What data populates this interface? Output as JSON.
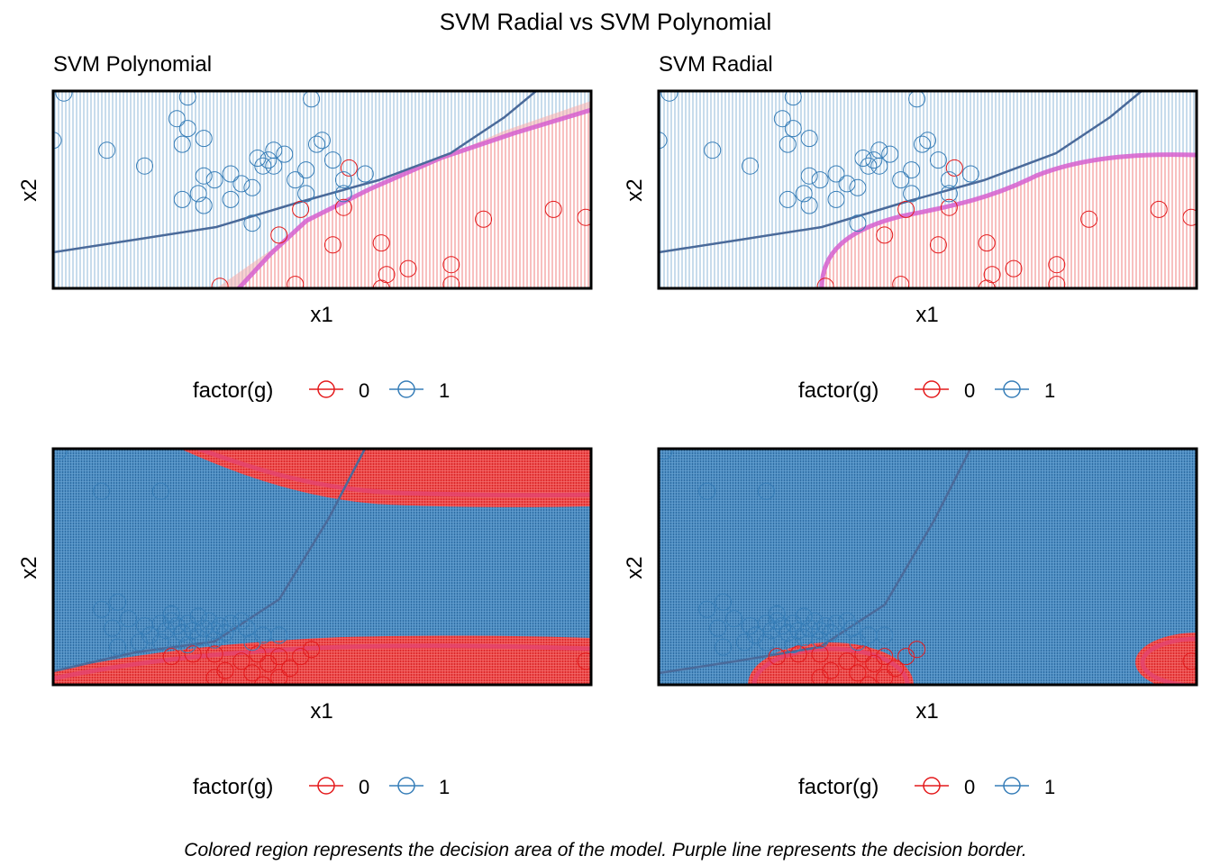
{
  "figure": {
    "title": "SVM Radial vs SVM Polynomial",
    "caption": "Colored region represents the decision area of the model. Purple line represents the decision border."
  },
  "colors": {
    "class_0": "#e41a1c",
    "class_1": "#377eb8",
    "border": "#d65fcf",
    "curve": "#4a6a9a"
  },
  "legend": {
    "title": "factor(g)",
    "entries": [
      "0",
      "1"
    ]
  },
  "chart_data": [
    {
      "type": "scatter",
      "title": "SVM Polynomial",
      "xlabel": "x1",
      "ylabel": "x2",
      "legend_position": "bottom",
      "series": [
        {
          "name": "0",
          "points": [
            [
              0.52,
              0.22
            ],
            [
              0.66,
              0.1
            ],
            [
              0.61,
              0.23
            ],
            [
              0.62,
              0.07
            ],
            [
              0.54,
              0.41
            ],
            [
              0.8,
              0.35
            ],
            [
              0.46,
              0.4
            ],
            [
              0.42,
              0.27
            ],
            [
              0.99,
              0.36
            ],
            [
              0.93,
              0.4
            ],
            [
              0.74,
              0.12
            ],
            [
              0.45,
              0.02
            ],
            [
              0.74,
              0.02
            ],
            [
              0.55,
              0.61
            ],
            [
              0.61,
              0.0
            ],
            [
              0.31,
              0.01
            ]
          ]
        },
        {
          "name": "1",
          "points": [
            [
              0.25,
              0.97
            ],
            [
              0.02,
              0.99
            ],
            [
              0.0,
              0.75
            ],
            [
              0.1,
              0.7
            ],
            [
              0.17,
              0.62
            ],
            [
              0.23,
              0.86
            ],
            [
              0.25,
              0.81
            ],
            [
              0.28,
              0.76
            ],
            [
              0.24,
              0.73
            ],
            [
              0.28,
              0.57
            ],
            [
              0.27,
              0.48
            ],
            [
              0.3,
              0.55
            ],
            [
              0.33,
              0.45
            ],
            [
              0.35,
              0.53
            ],
            [
              0.38,
              0.66
            ],
            [
              0.39,
              0.62
            ],
            [
              0.37,
              0.51
            ],
            [
              0.48,
              0.96
            ],
            [
              0.49,
              0.73
            ],
            [
              0.5,
              0.75
            ],
            [
              0.52,
              0.65
            ],
            [
              0.54,
              0.55
            ],
            [
              0.43,
              0.68
            ],
            [
              0.41,
              0.62
            ],
            [
              0.45,
              0.55
            ],
            [
              0.47,
              0.6
            ],
            [
              0.58,
              0.58
            ],
            [
              0.54,
              0.48
            ],
            [
              0.47,
              0.48
            ],
            [
              0.41,
              0.7
            ],
            [
              0.4,
              0.65
            ],
            [
              0.37,
              0.33
            ],
            [
              0.33,
              0.58
            ],
            [
              0.28,
              0.42
            ],
            [
              0.24,
              0.45
            ]
          ]
        }
      ],
      "decision_border": [
        [
          0.35,
          0.0
        ],
        [
          0.45,
          0.18
        ],
        [
          0.6,
          0.4
        ],
        [
          0.75,
          0.62
        ],
        [
          0.9,
          0.78
        ],
        [
          1.0,
          0.9
        ]
      ],
      "second_curve": [
        [
          0.0,
          0.2
        ],
        [
          0.3,
          0.28
        ],
        [
          0.5,
          0.44
        ],
        [
          0.7,
          0.7
        ],
        [
          0.9,
          0.96
        ],
        [
          0.94,
          1.0
        ]
      ]
    },
    {
      "type": "scatter",
      "title": "SVM Radial",
      "xlabel": "x1",
      "ylabel": "x2",
      "legend_position": "bottom",
      "series": [
        {
          "name": "0",
          "points": [
            [
              0.52,
              0.22
            ],
            [
              0.66,
              0.1
            ],
            [
              0.61,
              0.23
            ],
            [
              0.62,
              0.07
            ],
            [
              0.54,
              0.41
            ],
            [
              0.8,
              0.35
            ],
            [
              0.46,
              0.4
            ],
            [
              0.42,
              0.27
            ],
            [
              0.99,
              0.36
            ],
            [
              0.93,
              0.4
            ],
            [
              0.74,
              0.12
            ],
            [
              0.45,
              0.02
            ],
            [
              0.74,
              0.02
            ],
            [
              0.55,
              0.61
            ],
            [
              0.61,
              0.0
            ],
            [
              0.31,
              0.01
            ]
          ]
        },
        {
          "name": "1",
          "points": [
            [
              0.25,
              0.97
            ],
            [
              0.02,
              0.99
            ],
            [
              0.0,
              0.75
            ],
            [
              0.1,
              0.7
            ],
            [
              0.17,
              0.62
            ],
            [
              0.23,
              0.86
            ],
            [
              0.25,
              0.81
            ],
            [
              0.28,
              0.76
            ],
            [
              0.24,
              0.73
            ],
            [
              0.28,
              0.57
            ],
            [
              0.27,
              0.48
            ],
            [
              0.3,
              0.55
            ],
            [
              0.33,
              0.45
            ],
            [
              0.35,
              0.53
            ],
            [
              0.38,
              0.66
            ],
            [
              0.39,
              0.62
            ],
            [
              0.37,
              0.51
            ],
            [
              0.48,
              0.96
            ],
            [
              0.49,
              0.73
            ],
            [
              0.5,
              0.75
            ],
            [
              0.52,
              0.65
            ],
            [
              0.54,
              0.55
            ],
            [
              0.43,
              0.68
            ],
            [
              0.41,
              0.62
            ],
            [
              0.45,
              0.55
            ],
            [
              0.47,
              0.6
            ],
            [
              0.58,
              0.58
            ],
            [
              0.54,
              0.48
            ],
            [
              0.47,
              0.48
            ],
            [
              0.41,
              0.7
            ],
            [
              0.4,
              0.65
            ],
            [
              0.37,
              0.33
            ],
            [
              0.33,
              0.58
            ],
            [
              0.28,
              0.42
            ],
            [
              0.24,
              0.45
            ]
          ]
        }
      ],
      "decision_border": [
        [
          0.3,
          0.0
        ],
        [
          0.33,
          0.2
        ],
        [
          0.45,
          0.33
        ],
        [
          0.6,
          0.47
        ],
        [
          0.72,
          0.62
        ],
        [
          0.85,
          0.68
        ],
        [
          1.0,
          0.68
        ]
      ],
      "second_curve": [
        [
          0.0,
          0.2
        ],
        [
          0.3,
          0.28
        ],
        [
          0.5,
          0.44
        ],
        [
          0.7,
          0.7
        ],
        [
          0.9,
          0.96
        ],
        [
          0.94,
          1.0
        ]
      ]
    },
    {
      "type": "scatter",
      "title": "",
      "xlabel": "x1",
      "ylabel": "x2",
      "legend_position": "bottom",
      "series": [
        {
          "name": "0",
          "points": [
            [
              0.3,
              0.13
            ],
            [
              0.32,
              0.06
            ],
            [
              0.35,
              0.1
            ],
            [
              0.37,
              0.05
            ],
            [
              0.38,
              0.13
            ],
            [
              0.4,
              0.09
            ],
            [
              0.42,
              0.12
            ],
            [
              0.44,
              0.07
            ],
            [
              0.46,
              0.12
            ],
            [
              0.48,
              0.15
            ],
            [
              0.3,
              0.03
            ],
            [
              0.26,
              0.13
            ],
            [
              0.22,
              0.12
            ],
            [
              0.42,
              0.03
            ],
            [
              0.39,
              0.0
            ],
            [
              0.99,
              0.1
            ]
          ]
        },
        {
          "name": "1",
          "points": [
            [
              0.01,
              0.99
            ],
            [
              0.09,
              0.82
            ],
            [
              0.2,
              0.82
            ],
            [
              0.11,
              0.24
            ],
            [
              0.14,
              0.28
            ],
            [
              0.12,
              0.35
            ],
            [
              0.09,
              0.32
            ],
            [
              0.12,
              0.16
            ],
            [
              0.17,
              0.25
            ],
            [
              0.2,
              0.26
            ],
            [
              0.21,
              0.23
            ],
            [
              0.22,
              0.27
            ],
            [
              0.23,
              0.25
            ],
            [
              0.24,
              0.22
            ],
            [
              0.25,
              0.26
            ],
            [
              0.26,
              0.23
            ],
            [
              0.27,
              0.2
            ],
            [
              0.28,
              0.24
            ],
            [
              0.29,
              0.27
            ],
            [
              0.3,
              0.23
            ],
            [
              0.31,
              0.25
            ],
            [
              0.32,
              0.22
            ],
            [
              0.33,
              0.26
            ],
            [
              0.35,
              0.27
            ],
            [
              0.36,
              0.24
            ],
            [
              0.37,
              0.18
            ],
            [
              0.39,
              0.21
            ],
            [
              0.42,
              0.21
            ],
            [
              0.2,
              0.18
            ],
            [
              0.25,
              0.17
            ],
            [
              0.3,
              0.19
            ],
            [
              0.22,
              0.3
            ],
            [
              0.27,
              0.29
            ],
            [
              0.18,
              0.21
            ],
            [
              0.16,
              0.18
            ]
          ]
        }
      ],
      "decision_border": [
        [
          0.0,
          0.05
        ],
        [
          0.2,
          0.12
        ],
        [
          0.35,
          0.15
        ],
        [
          0.6,
          0.17
        ],
        [
          0.8,
          0.17
        ],
        [
          1.0,
          0.12
        ]
      ],
      "second_curve": [
        [
          0.0,
          0.06
        ],
        [
          0.15,
          0.1
        ],
        [
          0.3,
          0.18
        ],
        [
          0.42,
          0.3
        ],
        [
          0.5,
          0.5
        ],
        [
          0.55,
          0.8
        ],
        [
          0.58,
          1.0
        ]
      ]
    },
    {
      "type": "scatter",
      "title": "",
      "xlabel": "x1",
      "ylabel": "x2",
      "legend_position": "bottom",
      "series": [
        {
          "name": "0",
          "points": [
            [
              0.3,
              0.13
            ],
            [
              0.32,
              0.06
            ],
            [
              0.35,
              0.1
            ],
            [
              0.37,
              0.05
            ],
            [
              0.38,
              0.13
            ],
            [
              0.4,
              0.09
            ],
            [
              0.42,
              0.12
            ],
            [
              0.44,
              0.07
            ],
            [
              0.46,
              0.12
            ],
            [
              0.48,
              0.15
            ],
            [
              0.3,
              0.03
            ],
            [
              0.26,
              0.13
            ],
            [
              0.22,
              0.12
            ],
            [
              0.42,
              0.03
            ],
            [
              0.39,
              0.0
            ],
            [
              0.99,
              0.1
            ]
          ]
        },
        {
          "name": "1",
          "points": [
            [
              0.01,
              0.99
            ],
            [
              0.09,
              0.82
            ],
            [
              0.2,
              0.82
            ],
            [
              0.11,
              0.24
            ],
            [
              0.14,
              0.28
            ],
            [
              0.12,
              0.35
            ],
            [
              0.09,
              0.32
            ],
            [
              0.12,
              0.16
            ],
            [
              0.17,
              0.25
            ],
            [
              0.2,
              0.26
            ],
            [
              0.21,
              0.23
            ],
            [
              0.22,
              0.27
            ],
            [
              0.23,
              0.25
            ],
            [
              0.24,
              0.22
            ],
            [
              0.25,
              0.26
            ],
            [
              0.26,
              0.23
            ],
            [
              0.27,
              0.2
            ],
            [
              0.28,
              0.24
            ],
            [
              0.29,
              0.27
            ],
            [
              0.3,
              0.23
            ],
            [
              0.31,
              0.25
            ],
            [
              0.32,
              0.22
            ],
            [
              0.33,
              0.26
            ],
            [
              0.35,
              0.27
            ],
            [
              0.36,
              0.24
            ],
            [
              0.37,
              0.18
            ],
            [
              0.39,
              0.21
            ],
            [
              0.42,
              0.21
            ],
            [
              0.2,
              0.18
            ],
            [
              0.25,
              0.17
            ],
            [
              0.3,
              0.19
            ],
            [
              0.22,
              0.3
            ],
            [
              0.27,
              0.29
            ],
            [
              0.18,
              0.21
            ],
            [
              0.16,
              0.18
            ]
          ]
        }
      ],
      "decision_border": [],
      "second_curve": [
        [
          0.0,
          0.05
        ],
        [
          0.15,
          0.1
        ],
        [
          0.3,
          0.18
        ],
        [
          0.42,
          0.3
        ],
        [
          0.5,
          0.5
        ],
        [
          0.55,
          0.8
        ],
        [
          0.58,
          1.0
        ]
      ]
    }
  ]
}
